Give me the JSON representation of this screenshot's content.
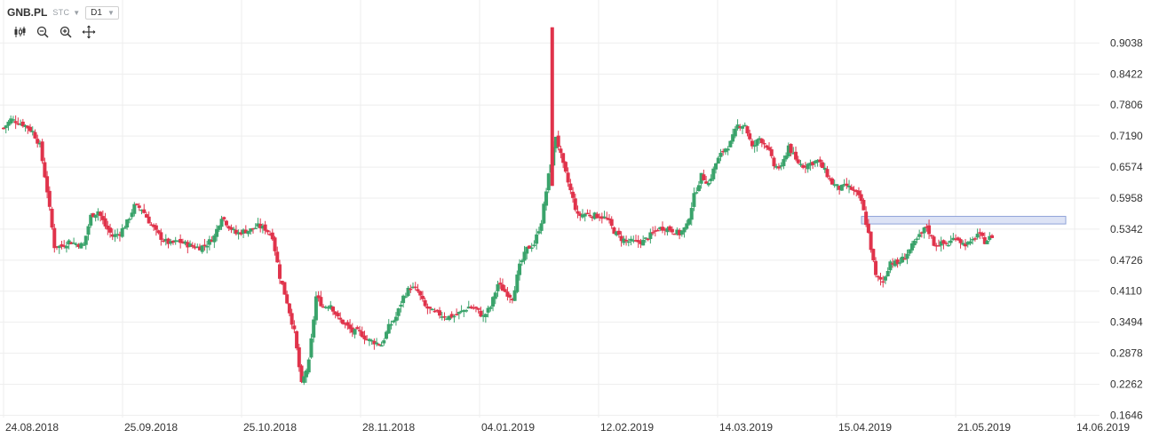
{
  "toolbar": {
    "symbol": "GNB.PL",
    "exchange": "STC",
    "timeframe": "D1",
    "tools": [
      "candles-icon",
      "zoom-out-icon",
      "zoom-in-icon",
      "crosshair-icon"
    ]
  },
  "colors": {
    "up": "#3aa36b",
    "down": "#e0334b",
    "grid": "#eeeeee",
    "zone_fill": "#dde3f5",
    "zone_stroke": "#8fa3d8"
  },
  "chart_data": {
    "type": "candlestick",
    "y_ticks": [
      "0.9038",
      "0.8422",
      "0.7806",
      "0.7190",
      "0.6574",
      "0.5958",
      "0.5342",
      "0.4726",
      "0.4110",
      "0.3494",
      "0.2878",
      "0.2262",
      "0.1646"
    ],
    "x_ticks": [
      "24.08.2018",
      "25.09.2018",
      "25.10.2018",
      "28.11.2018",
      "04.01.2019",
      "12.02.2019",
      "14.03.2019",
      "15.04.2019",
      "21.05.2019",
      "14.06.2019"
    ],
    "ylim": [
      0.1646,
      0.9038
    ],
    "zone": {
      "from": 0.548,
      "to": 0.556
    },
    "close_path": [
      [
        0,
        0.735
      ],
      [
        3,
        0.752
      ],
      [
        6,
        0.747
      ],
      [
        9,
        0.74
      ],
      [
        12,
        0.728
      ],
      [
        15,
        0.7
      ],
      [
        18,
        0.61
      ],
      [
        21,
        0.5
      ],
      [
        24,
        0.5
      ],
      [
        27,
        0.51
      ],
      [
        30,
        0.505
      ],
      [
        33,
        0.502
      ],
      [
        36,
        0.56
      ],
      [
        39,
        0.57
      ],
      [
        42,
        0.54
      ],
      [
        45,
        0.52
      ],
      [
        48,
        0.527
      ],
      [
        51,
        0.548
      ],
      [
        54,
        0.58
      ],
      [
        57,
        0.575
      ],
      [
        60,
        0.55
      ],
      [
        63,
        0.528
      ],
      [
        66,
        0.512
      ],
      [
        69,
        0.505
      ],
      [
        72,
        0.51
      ],
      [
        75,
        0.505
      ],
      [
        78,
        0.5
      ],
      [
        81,
        0.498
      ],
      [
        84,
        0.505
      ],
      [
        87,
        0.52
      ],
      [
        90,
        0.56
      ],
      [
        93,
        0.54
      ],
      [
        96,
        0.525
      ],
      [
        99,
        0.53
      ],
      [
        102,
        0.533
      ],
      [
        105,
        0.54
      ],
      [
        108,
        0.535
      ],
      [
        111,
        0.52
      ],
      [
        114,
        0.44
      ],
      [
        117,
        0.39
      ],
      [
        120,
        0.33
      ],
      [
        123,
        0.225
      ],
      [
        126,
        0.27
      ],
      [
        129,
        0.4
      ],
      [
        132,
        0.38
      ],
      [
        135,
        0.385
      ],
      [
        138,
        0.357
      ],
      [
        141,
        0.345
      ],
      [
        144,
        0.33
      ],
      [
        147,
        0.33
      ],
      [
        150,
        0.315
      ],
      [
        153,
        0.31
      ],
      [
        156,
        0.305
      ],
      [
        159,
        0.34
      ],
      [
        162,
        0.36
      ],
      [
        165,
        0.4
      ],
      [
        168,
        0.42
      ],
      [
        171,
        0.41
      ],
      [
        174,
        0.38
      ],
      [
        177,
        0.37
      ],
      [
        180,
        0.365
      ],
      [
        183,
        0.36
      ],
      [
        186,
        0.362
      ],
      [
        189,
        0.37
      ],
      [
        192,
        0.38
      ],
      [
        195,
        0.375
      ],
      [
        198,
        0.36
      ],
      [
        201,
        0.38
      ],
      [
        204,
        0.425
      ],
      [
        207,
        0.41
      ],
      [
        210,
        0.398
      ],
      [
        213,
        0.46
      ],
      [
        216,
        0.495
      ],
      [
        219,
        0.505
      ],
      [
        222,
        0.55
      ],
      [
        225,
        0.64
      ],
      [
        228,
        0.72
      ],
      [
        231,
        0.66
      ],
      [
        234,
        0.61
      ],
      [
        237,
        0.56
      ],
      [
        240,
        0.565
      ],
      [
        243,
        0.562
      ],
      [
        246,
        0.56
      ],
      [
        249,
        0.555
      ],
      [
        252,
        0.53
      ],
      [
        255,
        0.515
      ],
      [
        258,
        0.51
      ],
      [
        261,
        0.508
      ],
      [
        264,
        0.51
      ],
      [
        267,
        0.522
      ],
      [
        270,
        0.535
      ],
      [
        273,
        0.537
      ],
      [
        276,
        0.532
      ],
      [
        279,
        0.525
      ],
      [
        282,
        0.54
      ],
      [
        285,
        0.6
      ],
      [
        288,
        0.64
      ],
      [
        291,
        0.625
      ],
      [
        294,
        0.665
      ],
      [
        297,
        0.69
      ],
      [
        300,
        0.705
      ],
      [
        303,
        0.74
      ],
      [
        306,
        0.742
      ],
      [
        309,
        0.695
      ],
      [
        312,
        0.715
      ],
      [
        315,
        0.7
      ],
      [
        318,
        0.66
      ],
      [
        321,
        0.655
      ],
      [
        324,
        0.7
      ],
      [
        327,
        0.67
      ],
      [
        330,
        0.66
      ],
      [
        333,
        0.665
      ],
      [
        336,
        0.67
      ],
      [
        339,
        0.65
      ],
      [
        342,
        0.625
      ],
      [
        345,
        0.615
      ],
      [
        348,
        0.62
      ],
      [
        351,
        0.61
      ],
      [
        354,
        0.59
      ],
      [
        357,
        0.525
      ],
      [
        360,
        0.44
      ],
      [
        363,
        0.43
      ],
      [
        366,
        0.47
      ],
      [
        369,
        0.465
      ],
      [
        372,
        0.48
      ],
      [
        375,
        0.5
      ],
      [
        378,
        0.52
      ],
      [
        381,
        0.54
      ],
      [
        384,
        0.505
      ],
      [
        387,
        0.505
      ],
      [
        390,
        0.505
      ],
      [
        393,
        0.52
      ],
      [
        396,
        0.505
      ],
      [
        399,
        0.505
      ],
      [
        402,
        0.525
      ],
      [
        405,
        0.51
      ],
      [
        408,
        0.52
      ]
    ]
  }
}
